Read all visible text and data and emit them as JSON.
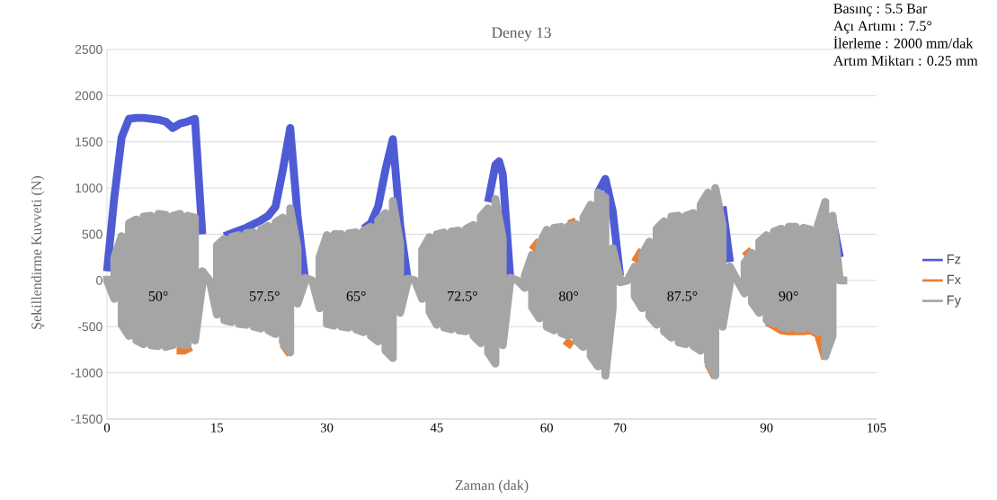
{
  "chart_data": {
    "type": "line",
    "title": "Deney 13",
    "xlabel": "Zaman (dak)",
    "ylabel": "Şekillendirme Kuvveti (N)",
    "xlim": [
      0,
      105
    ],
    "xticks": [
      0,
      15,
      30,
      45,
      60,
      70,
      90,
      105
    ],
    "ylim": [
      -1500,
      2500
    ],
    "yticks": [
      -1500,
      -1000,
      -500,
      0,
      500,
      1000,
      1500,
      2000,
      2500
    ],
    "grid": "y",
    "legend": "right",
    "annotations": [
      "Basınç : 5.5 Bar",
      "Açı Artımı : 7.5°",
      "İlerleme : 2000 mm/dak",
      "Artım Miktarı : 0.25 mm",
      {
        "text": "50°",
        "x": 7,
        "y": -170
      },
      {
        "text": "57.5°",
        "x": 21.5,
        "y": -170
      },
      {
        "text": "65°",
        "x": 34,
        "y": -170
      },
      {
        "text": "72.5°",
        "x": 48.5,
        "y": -170
      },
      {
        "text": "80°",
        "x": 63,
        "y": -170
      },
      {
        "text": "87.5°",
        "x": 78.5,
        "y": -170
      },
      {
        "text": "90°",
        "x": 93,
        "y": -170
      }
    ],
    "series": [
      {
        "name": "Fz",
        "color": "#4f5bd5",
        "x": [
          0,
          1,
          2,
          3,
          4,
          5,
          6,
          7,
          8,
          9,
          10,
          11,
          12,
          13,
          14,
          15,
          16,
          17,
          18,
          19,
          20,
          21,
          22,
          23,
          24,
          25,
          26,
          27,
          28,
          29,
          30,
          31,
          32,
          33,
          34,
          35,
          36,
          37,
          38,
          39,
          40,
          41,
          42,
          43,
          44,
          45,
          46,
          47,
          48,
          49,
          50,
          51,
          52,
          53,
          53.5,
          54,
          55,
          56,
          57,
          58,
          59,
          60,
          61,
          62,
          63,
          64,
          65,
          66,
          67,
          68,
          69,
          70,
          71,
          72,
          73,
          74,
          75,
          76,
          77,
          78,
          79,
          80,
          81,
          82,
          83,
          84,
          85,
          86,
          87,
          88,
          89,
          90,
          91,
          92,
          93,
          94,
          95,
          96,
          97,
          98,
          99,
          100
        ],
        "values": [
          100,
          900,
          1550,
          1750,
          1760,
          1760,
          1750,
          1740,
          1720,
          1650,
          1700,
          1720,
          1750,
          500,
          null,
          null,
          480,
          510,
          540,
          570,
          610,
          650,
          700,
          800,
          1200,
          1650,
          700,
          30,
          null,
          null,
          null,
          null,
          null,
          null,
          null,
          560,
          620,
          800,
          1200,
          1530,
          600,
          30,
          null,
          null,
          null,
          null,
          null,
          null,
          null,
          null,
          null,
          null,
          850,
          1250,
          1290,
          1150,
          50,
          null,
          null,
          null,
          null,
          null,
          null,
          null,
          null,
          null,
          null,
          null,
          950,
          1100,
          750,
          50,
          null,
          null,
          null,
          null,
          null,
          null,
          null,
          null,
          null,
          null,
          null,
          null,
          null,
          800,
          200,
          null,
          null,
          null,
          null,
          null,
          null,
          null,
          null,
          null,
          null,
          null,
          null,
          null,
          650,
          250
        ]
      },
      {
        "name": "Fx",
        "color": "#ed7d31",
        "x": [
          58,
          59,
          63,
          64,
          72,
          73,
          87,
          88,
          9.5,
          10.5,
          11.5,
          24,
          25,
          62.5,
          63.5,
          82,
          83,
          90,
          91,
          92,
          93,
          94,
          95,
          96,
          97,
          98
        ],
        "values": [
          330,
          430,
          610,
          640,
          200,
          330,
          260,
          330,
          -760,
          -760,
          -720,
          -690,
          -800,
          -650,
          -710,
          -900,
          -1050,
          -450,
          -490,
          -540,
          -550,
          -550,
          -550,
          -540,
          -580,
          -850
        ]
      },
      {
        "name": "Fy",
        "color": "#a5a5a5",
        "x": [
          0,
          0,
          1,
          1,
          2,
          2,
          3,
          3,
          4,
          4,
          5,
          5,
          6,
          6,
          7,
          7,
          8,
          8,
          9,
          9,
          10,
          10,
          11,
          11,
          12,
          12,
          13,
          13,
          14,
          14,
          15,
          15,
          16,
          16,
          17,
          17,
          18,
          18,
          19,
          19,
          20,
          20,
          21,
          21,
          22,
          22,
          23,
          23,
          24,
          24,
          25,
          25,
          26,
          26,
          27,
          27,
          28,
          28,
          29,
          29,
          30,
          30,
          31,
          31,
          32,
          32,
          33,
          33,
          34,
          34,
          35,
          35,
          36,
          36,
          37,
          37,
          38,
          38,
          39,
          39,
          40,
          40,
          41,
          41,
          42,
          42,
          43,
          43,
          44,
          44,
          45,
          45,
          46,
          46,
          47,
          47,
          48,
          48,
          49,
          49,
          50,
          50,
          51,
          51,
          52,
          52,
          53,
          53,
          54,
          54,
          55,
          55,
          56,
          56,
          57,
          57,
          58,
          58,
          59,
          59,
          60,
          60,
          61,
          61,
          62,
          62,
          63,
          63,
          64,
          64,
          65,
          65,
          66,
          66,
          67,
          67,
          68,
          68,
          69,
          69,
          70,
          70,
          71,
          71,
          72,
          72,
          73,
          73,
          74,
          74,
          75,
          75,
          76,
          76,
          77,
          77,
          78,
          78,
          79,
          79,
          80,
          80,
          81,
          81,
          82,
          82,
          83,
          83,
          84,
          84,
          85,
          85,
          86,
          86,
          87,
          87,
          88,
          88,
          89,
          89,
          90,
          90,
          91,
          91,
          92,
          92,
          93,
          93,
          94,
          94,
          95,
          95,
          96,
          96,
          97,
          97,
          98,
          98,
          99,
          99,
          100,
          100,
          101,
          101
        ],
        "values": [
          50,
          0,
          -200,
          250,
          480,
          -480,
          -600,
          620,
          660,
          -650,
          -690,
          690,
          700,
          -700,
          -710,
          720,
          710,
          -720,
          -700,
          700,
          720,
          -690,
          -700,
          700,
          680,
          -650,
          -50,
          100,
          0,
          0,
          -370,
          380,
          450,
          -430,
          -450,
          470,
          490,
          -470,
          -480,
          510,
          520,
          -500,
          -520,
          550,
          590,
          -540,
          -580,
          630,
          680,
          -670,
          -780,
          780,
          350,
          -250,
          -20,
          30,
          0,
          0,
          -300,
          250,
          490,
          -470,
          -490,
          500,
          500,
          -500,
          -510,
          510,
          520,
          -530,
          -560,
          540,
          580,
          -600,
          -660,
          650,
          730,
          -760,
          -840,
          860,
          400,
          -350,
          -20,
          20,
          0,
          0,
          -200,
          330,
          470,
          -340,
          -480,
          500,
          520,
          -510,
          -530,
          530,
          540,
          -540,
          -550,
          560,
          600,
          -600,
          -680,
          690,
          780,
          -780,
          -900,
          880,
          450,
          -700,
          -20,
          30,
          0,
          0,
          -80,
          50,
          280,
          -290,
          -410,
          390,
          550,
          -500,
          -540,
          570,
          580,
          -570,
          -600,
          590,
          610,
          -650,
          -720,
          680,
          820,
          -820,
          -930,
          950,
          900,
          -1030,
          -300,
          350,
          20,
          -20,
          0,
          0,
          150,
          -170,
          -300,
          280,
          420,
          -390,
          -480,
          560,
          640,
          -550,
          -620,
          690,
          700,
          -670,
          -690,
          700,
          730,
          -710,
          -760,
          820,
          950,
          -880,
          -1030,
          1000,
          600,
          -500,
          -30,
          150,
          0,
          0,
          -140,
          190,
          300,
          -240,
          -350,
          420,
          490,
          -430,
          -470,
          530,
          560,
          -500,
          -520,
          580,
          580,
          -520,
          -520,
          570,
          550,
          -520,
          -560,
          600,
          850,
          -820,
          -600,
          700,
          0,
          0,
          0,
          0
        ]
      }
    ]
  }
}
